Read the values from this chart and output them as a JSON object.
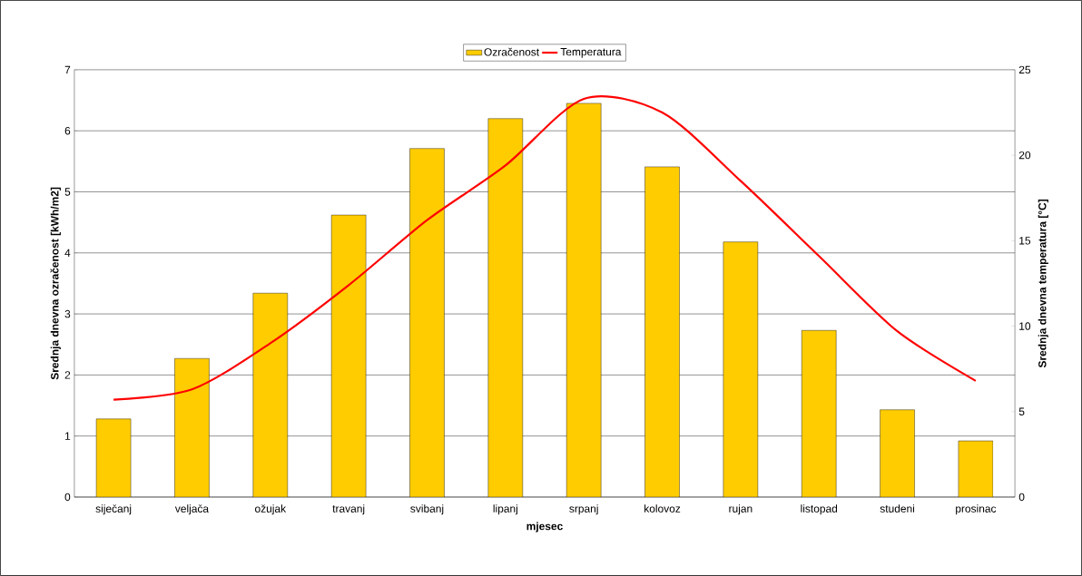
{
  "chart_data": {
    "type": "bar",
    "xlabel": "mjesec",
    "ylabel": "Srednja dnevna ozračenost [kWh/m2]",
    "y2label": "Srednja dnevna temperatura [°C]",
    "categories": [
      "siječanj",
      "veljača",
      "ožujak",
      "travanj",
      "svibanj",
      "lipanj",
      "srpanj",
      "kolovoz",
      "rujan",
      "listopad",
      "studeni",
      "prosinac"
    ],
    "series": [
      {
        "name": "Ozračenost",
        "color": "#ffcc00",
        "values": [
          1.28,
          2.27,
          3.34,
          4.62,
          5.71,
          6.2,
          6.45,
          5.41,
          4.18,
          2.73,
          1.43,
          0.92
        ]
      },
      {
        "name": "Temperatura",
        "type": "line",
        "axis": "y2",
        "color": "#ff0000",
        "values": [
          5.7,
          6.3,
          9.0,
          12.4,
          16.2,
          19.4,
          23.3,
          22.5,
          18.5,
          14.1,
          9.7,
          6.8
        ]
      }
    ],
    "ylim": [
      0,
      7
    ],
    "yticks": [
      0,
      1,
      2,
      3,
      4,
      5,
      6,
      7
    ],
    "y2lim": [
      0,
      25
    ],
    "y2ticks": [
      0,
      5,
      10,
      15,
      20,
      25
    ],
    "grid": "y",
    "legend": "top"
  }
}
